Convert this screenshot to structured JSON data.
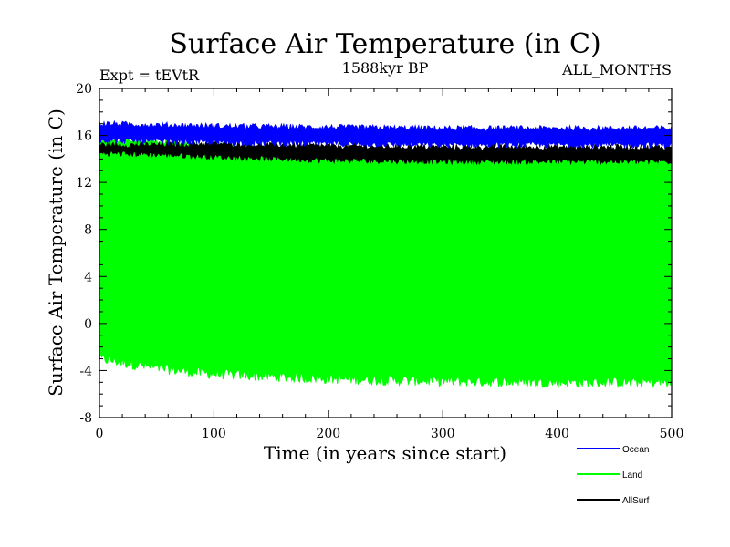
{
  "chart_data": {
    "type": "line",
    "title": "Surface Air Temperature (in C)",
    "subtitle": "1588kyr BP",
    "left_label": "Expt = tEVtR",
    "right_label": "ALL_MONTHS",
    "xlabel": "Time (in years since start)",
    "ylabel": "Surface Air Temperature (in C)",
    "xlim": [
      0,
      500
    ],
    "ylim": [
      -8,
      20
    ],
    "x_ticks": [
      "0",
      "100",
      "200",
      "300",
      "400",
      "500"
    ],
    "y_ticks": [
      "-8",
      "-4",
      "0",
      "4",
      "8",
      "12",
      "16",
      "20"
    ],
    "grid": false,
    "legend_position": "bottom-right",
    "series": [
      {
        "name": "Ocean",
        "color": "#0000ff",
        "band": {
          "x": [
            0,
            50,
            100,
            200,
            300,
            400,
            500
          ],
          "high": [
            17.0,
            16.9,
            16.8,
            16.7,
            16.6,
            16.6,
            16.6
          ],
          "low": [
            15.6,
            15.5,
            15.4,
            15.3,
            15.2,
            15.2,
            15.2
          ]
        }
      },
      {
        "name": "Land",
        "color": "#00ff00",
        "band": {
          "x": [
            0,
            50,
            100,
            200,
            300,
            400,
            500
          ],
          "high": [
            15.6,
            15.5,
            15.2,
            14.6,
            14.5,
            14.5,
            14.5
          ],
          "low": [
            -3.0,
            -3.8,
            -4.3,
            -4.7,
            -4.9,
            -5.0,
            -5.0
          ]
        }
      },
      {
        "name": "AllSurf",
        "color": "#000000",
        "band": {
          "x": [
            0,
            50,
            100,
            200,
            300,
            400,
            500
          ],
          "high": [
            15.2,
            15.2,
            15.3,
            15.1,
            15.0,
            15.0,
            15.0
          ],
          "low": [
            14.5,
            14.4,
            14.2,
            13.9,
            13.8,
            13.8,
            13.8
          ]
        }
      }
    ]
  }
}
